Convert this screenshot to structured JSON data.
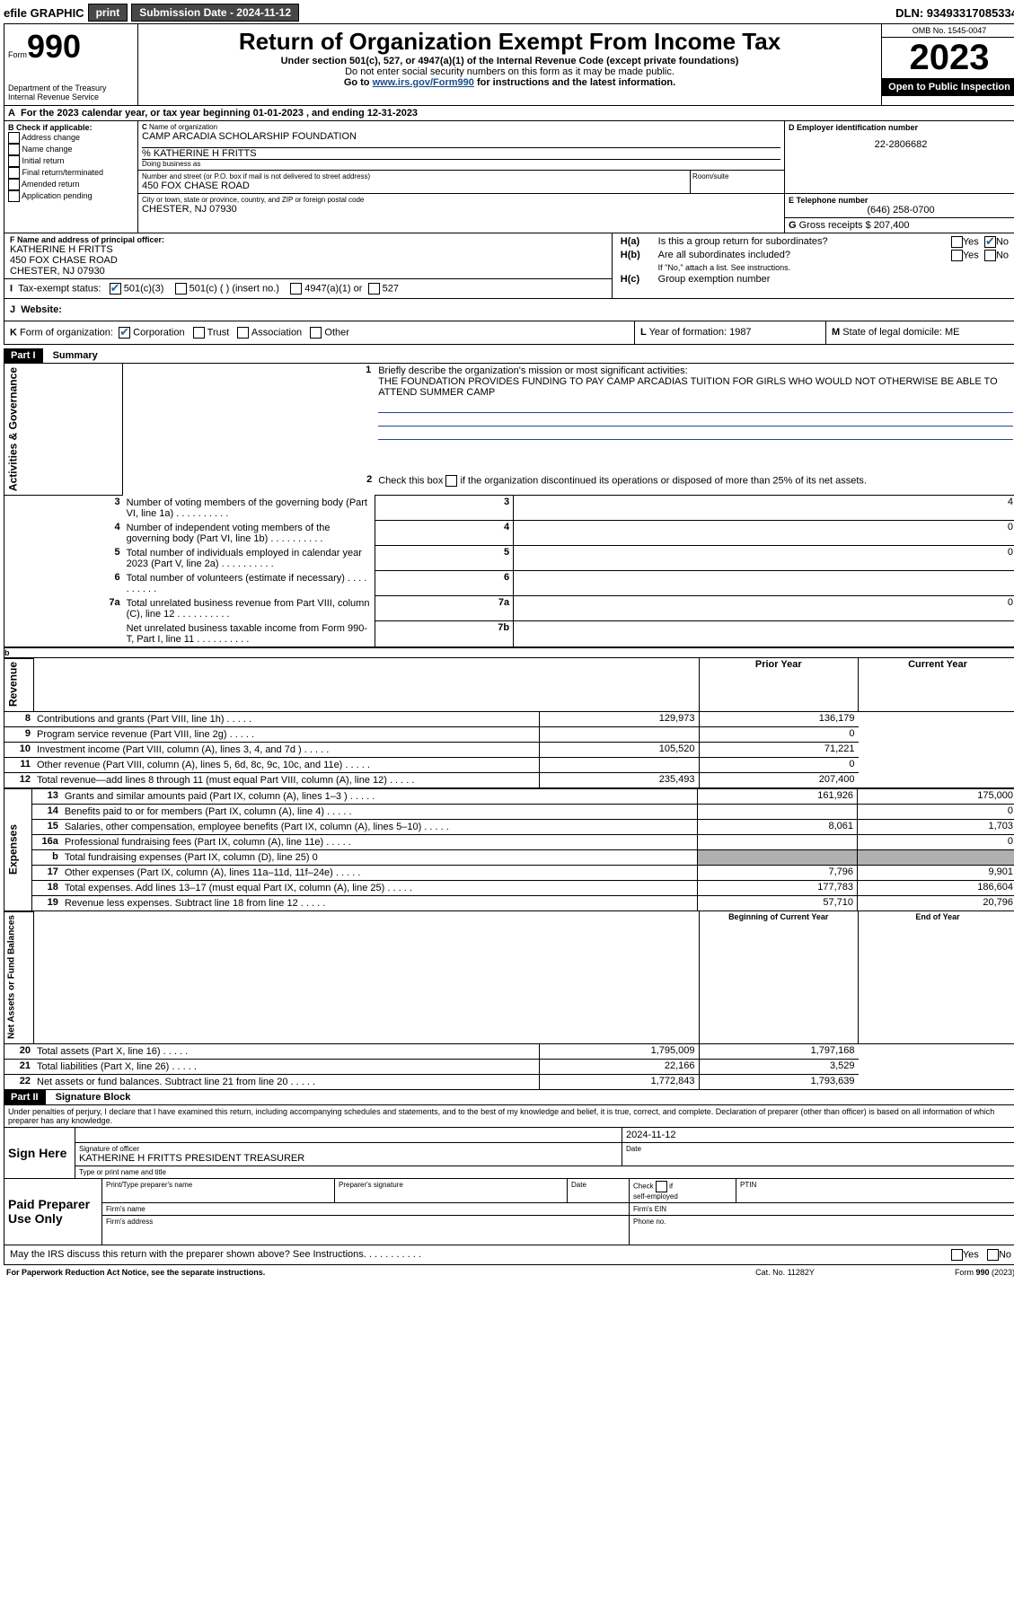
{
  "topbar": {
    "efile": "efile GRAPHIC",
    "print": "print",
    "submission_label": "Submission Date - 2024-11-12",
    "dln_label": "DLN: 93493317085334"
  },
  "header": {
    "form_label": "Form",
    "form_number": "990",
    "dept": "Department of the Treasury\nInternal Revenue Service",
    "title": "Return of Organization Exempt From Income Tax",
    "subtitle": "Under section 501(c), 527, or 4947(a)(1) of the Internal Revenue Code (except private foundations)",
    "note1": "Do not enter social security numbers on this form as it may be made public.",
    "note2": "Go to ",
    "note2_link": "www.irs.gov/Form990",
    "note2_rest": " for instructions and the latest information.",
    "omb": "OMB No. 1545-0047",
    "year": "2023",
    "inspection": "Open to Public Inspection"
  },
  "A": {
    "text": "For the 2023 calendar year, or tax year beginning ",
    "begin": "01-01-2023",
    "mid": "  , and ending ",
    "end": "12-31-2023"
  },
  "B": {
    "label": "B Check if applicable:",
    "opts": [
      "Address change",
      "Name change",
      "Initial return",
      "Final return/terminated",
      "Amended return",
      "Application pending"
    ]
  },
  "C": {
    "name_label": "Name of organization",
    "name": "CAMP ARCADIA SCHOLARSHIP FOUNDATION",
    "care_of": "% KATHERINE H FRITTS",
    "dba_label": "Doing business as",
    "street_label": "Number and street (or P.O. box if mail is not delivered to street address)",
    "street": "450 FOX CHASE ROAD",
    "room_label": "Room/suite",
    "city_label": "City or town, state or province, country, and ZIP or foreign postal code",
    "city": "CHESTER, NJ  07930"
  },
  "D": {
    "label": "D Employer identification number",
    "value": "22-2806682"
  },
  "E": {
    "label": "E Telephone number",
    "value": "(646) 258-0700"
  },
  "G": {
    "label": "G",
    "text": "Gross receipts $",
    "value": "207,400"
  },
  "F": {
    "label": "F  Name and address of principal officer:",
    "name": "KATHERINE H FRITTS",
    "street": "450 FOX CHASE ROAD",
    "city": "CHESTER, NJ  07930"
  },
  "H": {
    "a_label": "H(a)",
    "a_text": "Is this a group return for subordinates?",
    "b_label": "H(b)",
    "b_text": "Are all subordinates included?",
    "b_note": "If \"No,\" attach a list. See instructions.",
    "c_label": "H(c)",
    "c_text": "Group exemption number ",
    "yes": "Yes",
    "no": "No"
  },
  "I": {
    "label": "Tax-exempt status:",
    "opts": [
      "501(c)(3)",
      "501(c) (  ) (insert no.)",
      "4947(a)(1) or",
      "527"
    ]
  },
  "J": {
    "label": "Website:",
    "value": ""
  },
  "K": {
    "label": "Form of organization:",
    "opts": [
      "Corporation",
      "Trust",
      "Association",
      "Other"
    ]
  },
  "L": {
    "label": "L",
    "text": "Year of formation:",
    "value": "1987"
  },
  "M": {
    "label": "M",
    "text": "State of legal domicile:",
    "value": "ME"
  },
  "part1": {
    "header": "Part I",
    "title": "Summary",
    "line1_label": "Briefly describe the organization's mission or most significant activities:",
    "line1_text": "THE FOUNDATION PROVIDES FUNDING TO PAY CAMP ARCADIAS TUITION FOR GIRLS WHO WOULD NOT OTHERWISE BE ABLE TO ATTEND SUMMER CAMP",
    "line2": "Check this box      if the organization discontinued its operations or disposed of more than 25% of its net assets.",
    "sections": {
      "gov": "Activities & Governance",
      "rev": "Revenue",
      "exp": "Expenses",
      "net": "Net Assets or Fund Balances"
    },
    "rows_gov": [
      {
        "n": "3",
        "t": "Number of voting members of the governing body (Part VI, line 1a)",
        "k": "3",
        "v": "4"
      },
      {
        "n": "4",
        "t": "Number of independent voting members of the governing body (Part VI, line 1b)",
        "k": "4",
        "v": "0"
      },
      {
        "n": "5",
        "t": "Total number of individuals employed in calendar year 2023 (Part V, line 2a)",
        "k": "5",
        "v": "0"
      },
      {
        "n": "6",
        "t": "Total number of volunteers (estimate if necessary)",
        "k": "6",
        "v": ""
      },
      {
        "n": "7a",
        "t": "Total unrelated business revenue from Part VIII, column (C), line 12",
        "k": "7a",
        "v": "0"
      },
      {
        "n": "",
        "t": "Net unrelated business taxable income from Form 990-T, Part I, line 11",
        "k": "7b",
        "v": ""
      }
    ],
    "col_headers": {
      "prior": "Prior Year",
      "current": "Current Year",
      "boy": "Beginning of Current Year",
      "eoy": "End of Year"
    },
    "rows_rev": [
      {
        "n": "8",
        "t": "Contributions and grants (Part VIII, line 1h)",
        "p": "129,973",
        "c": "136,179"
      },
      {
        "n": "9",
        "t": "Program service revenue (Part VIII, line 2g)",
        "p": "",
        "c": "0"
      },
      {
        "n": "10",
        "t": "Investment income (Part VIII, column (A), lines 3, 4, and 7d )",
        "p": "105,520",
        "c": "71,221"
      },
      {
        "n": "11",
        "t": "Other revenue (Part VIII, column (A), lines 5, 6d, 8c, 9c, 10c, and 11e)",
        "p": "",
        "c": "0"
      },
      {
        "n": "12",
        "t": "Total revenue—add lines 8 through 11 (must equal Part VIII, column (A), line 12)",
        "p": "235,493",
        "c": "207,400"
      }
    ],
    "rows_exp": [
      {
        "n": "13",
        "t": "Grants and similar amounts paid (Part IX, column (A), lines 1–3 )",
        "p": "161,926",
        "c": "175,000"
      },
      {
        "n": "14",
        "t": "Benefits paid to or for members (Part IX, column (A), line 4)",
        "p": "",
        "c": "0"
      },
      {
        "n": "15",
        "t": "Salaries, other compensation, employee benefits (Part IX, column (A), lines 5–10)",
        "p": "8,061",
        "c": "1,703"
      },
      {
        "n": "16a",
        "t": "Professional fundraising fees (Part IX, column (A), line 11e)",
        "p": "",
        "c": "0"
      },
      {
        "n": "b",
        "t": "Total fundraising expenses (Part IX, column (D), line 25) 0",
        "p": "GRAY",
        "c": "GRAY"
      },
      {
        "n": "17",
        "t": "Other expenses (Part IX, column (A), lines 11a–11d, 11f–24e)",
        "p": "7,796",
        "c": "9,901"
      },
      {
        "n": "18",
        "t": "Total expenses. Add lines 13–17 (must equal Part IX, column (A), line 25)",
        "p": "177,783",
        "c": "186,604"
      },
      {
        "n": "19",
        "t": "Revenue less expenses. Subtract line 18 from line 12",
        "p": "57,710",
        "c": "20,796"
      }
    ],
    "rows_net": [
      {
        "n": "20",
        "t": "Total assets (Part X, line 16)",
        "p": "1,795,009",
        "c": "1,797,168"
      },
      {
        "n": "21",
        "t": "Total liabilities (Part X, line 26)",
        "p": "22,166",
        "c": "3,529"
      },
      {
        "n": "22",
        "t": "Net assets or fund balances. Subtract line 21 from line 20",
        "p": "1,772,843",
        "c": "1,793,639"
      }
    ]
  },
  "part2": {
    "header": "Part II",
    "title": "Signature Block",
    "declaration": "Under penalties of perjury, I declare that I have examined this return, including accompanying schedules and statements, and to the best of my knowledge and belief, it is true, correct, and complete. Declaration of preparer (other than officer) is based on all information of which preparer has any knowledge.",
    "sign_here": "Sign Here",
    "sig_label": "Signature of officer",
    "sig_name": "KATHERINE H FRITTS  PRESIDENT TREASURER",
    "sig_name_label": "Type or print name and title",
    "date_label": "Date",
    "date_value": "2024-11-12",
    "paid": "Paid Preparer Use Only",
    "prep_name": "Print/Type preparer's name",
    "prep_sig": "Preparer's signature",
    "prep_date": "Date",
    "check_if": "Check       if self-employed",
    "ptin": "PTIN",
    "firm_name": "Firm's name",
    "firm_ein": "Firm's EIN",
    "firm_addr": "Firm's address",
    "phone": "Phone no.",
    "discuss": "May the IRS discuss this return with the preparer shown above? See Instructions.",
    "yes": "Yes",
    "no": "No"
  },
  "footer": {
    "pra": "For Paperwork Reduction Act Notice, see the separate instructions.",
    "cat": "Cat. No. 11282Y",
    "form": "Form 990 (2023)"
  }
}
